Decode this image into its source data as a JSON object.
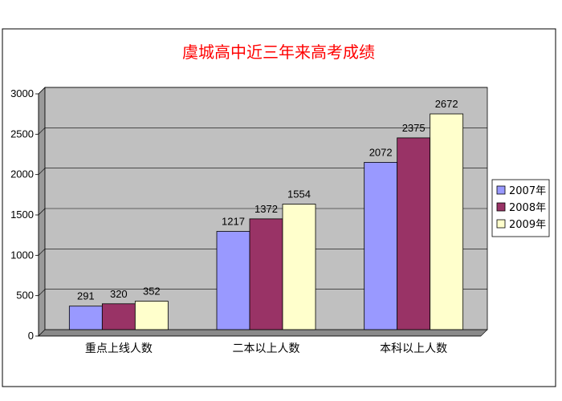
{
  "chart_data": {
    "type": "bar",
    "title": "虞城高中近三年来高考成绩",
    "categories": [
      "重点上线人数",
      "二本以上人数",
      "本科以上人数"
    ],
    "series": [
      {
        "name": "2007年",
        "values": [
          291,
          1217,
          2072
        ],
        "color": "#9999FF"
      },
      {
        "name": "2008年",
        "values": [
          320,
          1372,
          2375
        ],
        "color": "#993366"
      },
      {
        "name": "2009年",
        "values": [
          352,
          1554,
          2672
        ],
        "color": "#FFFFCC"
      }
    ],
    "ylim": [
      0,
      3000
    ],
    "yticks": [
      0,
      500,
      1000,
      1500,
      2000,
      2500,
      3000
    ],
    "grid": true,
    "legend": "right",
    "colors": {
      "title": "#FF0000",
      "plot_bg": "#C0C0C0",
      "border": "#000000"
    }
  }
}
